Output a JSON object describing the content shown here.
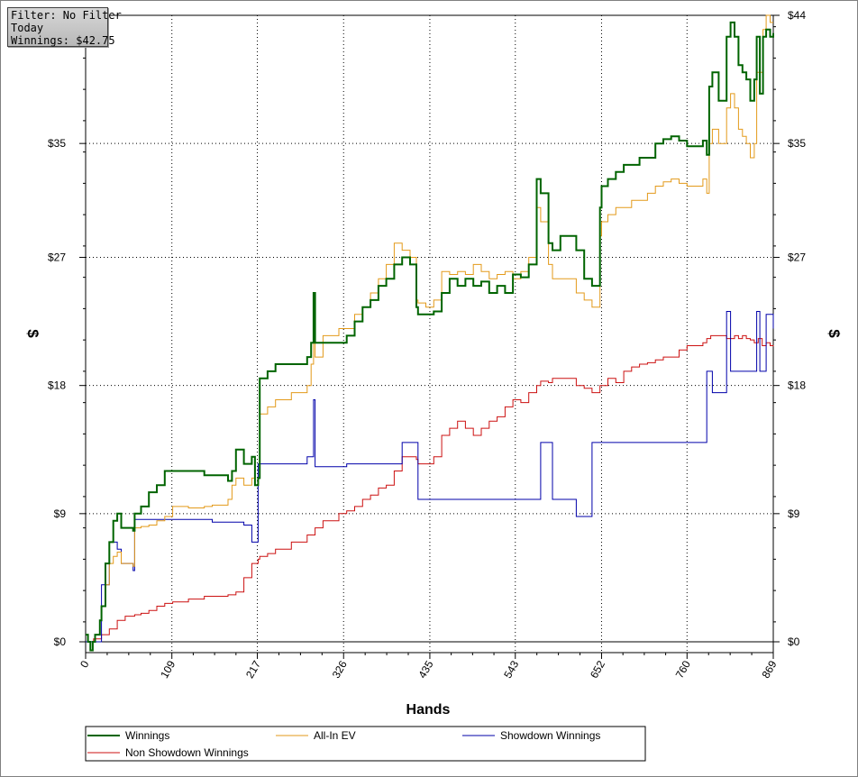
{
  "info_box": {
    "filter": "Filter: No Filter",
    "period": "Today",
    "winnings": "Winnings: $42.75"
  },
  "chart_data": {
    "type": "line",
    "xlabel": "Hands",
    "ylabel": "$",
    "xlim": [
      0,
      869
    ],
    "ylim": [
      -0.8,
      44
    ],
    "x_ticks": [
      0,
      109,
      217,
      326,
      435,
      543,
      652,
      760,
      869
    ],
    "y_ticks": [
      0,
      9,
      18,
      27,
      35,
      44
    ],
    "y_tick_labels": [
      "$0",
      "$9",
      "$18",
      "$27",
      "$35",
      "$44"
    ],
    "grid": "dotted",
    "legend_position": "bottom",
    "series": [
      {
        "name": "Winnings",
        "color": "#006400",
        "width": 2,
        "x": [
          0,
          3,
          6,
          9,
          12,
          18,
          20,
          25,
          30,
          35,
          40,
          45,
          60,
          62,
          70,
          80,
          90,
          100,
          110,
          130,
          150,
          160,
          180,
          185,
          190,
          200,
          210,
          214,
          218,
          220,
          230,
          240,
          260,
          280,
          285,
          288,
          290,
          300,
          320,
          330,
          340,
          350,
          360,
          370,
          380,
          390,
          400,
          410,
          418,
          420,
          430,
          440,
          450,
          460,
          470,
          480,
          490,
          500,
          510,
          520,
          530,
          540,
          550,
          560,
          570,
          575,
          585,
          590,
          600,
          620,
          630,
          640,
          650,
          652,
          660,
          670,
          680,
          690,
          700,
          710,
          720,
          730,
          740,
          750,
          760,
          780,
          785,
          788,
          792,
          800,
          810,
          815,
          820,
          825,
          830,
          835,
          840,
          845,
          848,
          852,
          856,
          860,
          865,
          869
        ],
        "y": [
          0.5,
          0,
          -0.6,
          0,
          0.5,
          1.5,
          2.5,
          5.5,
          7,
          8.5,
          9,
          8,
          7.8,
          9,
          9.5,
          10.5,
          11,
          12,
          12,
          12,
          11.7,
          11.7,
          11.3,
          12,
          13.5,
          12.5,
          13,
          11,
          11.5,
          18.5,
          19,
          19.5,
          19.5,
          20,
          21,
          24.5,
          21,
          21,
          21,
          21.5,
          22.5,
          23.5,
          24,
          25,
          25.5,
          26.5,
          27,
          26.5,
          23.5,
          23,
          23,
          23.2,
          24.5,
          25.5,
          25,
          25.5,
          25,
          25.3,
          24.5,
          25,
          24.5,
          25.8,
          25.6,
          26.5,
          32.5,
          31.5,
          28,
          27.5,
          28.5,
          27.5,
          25.5,
          25,
          30.5,
          32,
          32.5,
          33,
          33.5,
          33.5,
          34,
          34,
          35,
          35.3,
          35.5,
          35.2,
          34.8,
          35.2,
          34.2,
          39,
          40,
          38,
          42.5,
          43.5,
          42.5,
          40.5,
          40,
          39.5,
          38,
          39.5,
          42.5,
          38.5,
          42.5,
          43,
          42.5,
          42.75
        ]
      },
      {
        "name": "All-In EV",
        "color": "#e39a1a",
        "width": 1,
        "x": [
          0,
          3,
          6,
          9,
          12,
          18,
          20,
          25,
          30,
          35,
          40,
          45,
          60,
          62,
          70,
          80,
          90,
          100,
          110,
          130,
          150,
          160,
          180,
          185,
          190,
          200,
          210,
          214,
          218,
          220,
          230,
          240,
          260,
          280,
          285,
          288,
          290,
          300,
          320,
          330,
          340,
          350,
          360,
          370,
          380,
          390,
          400,
          410,
          418,
          420,
          430,
          440,
          450,
          460,
          470,
          480,
          490,
          500,
          510,
          520,
          530,
          540,
          550,
          560,
          570,
          575,
          585,
          590,
          600,
          620,
          630,
          640,
          650,
          652,
          660,
          670,
          680,
          690,
          700,
          710,
          720,
          730,
          740,
          750,
          760,
          780,
          785,
          788,
          792,
          800,
          810,
          815,
          820,
          825,
          830,
          835,
          840,
          845,
          848,
          852,
          856,
          860,
          865,
          869
        ],
        "y": [
          0.5,
          0,
          -0.6,
          0,
          0.5,
          1.5,
          2.5,
          4,
          5.5,
          6,
          6.3,
          5.5,
          5.3,
          8,
          8.1,
          8.2,
          8.5,
          8.8,
          9.5,
          9.4,
          9.5,
          9.6,
          10,
          11,
          11.5,
          11,
          11.5,
          11,
          11.5,
          16,
          16.5,
          17,
          17.5,
          18,
          19.5,
          22,
          20,
          21.5,
          22,
          22,
          23,
          23.5,
          24.5,
          25.5,
          26.5,
          28,
          27.5,
          27,
          24,
          23.8,
          23.5,
          24,
          26,
          25.8,
          26,
          25.8,
          26.5,
          26,
          25.5,
          25.8,
          26,
          25.5,
          26,
          27,
          30.5,
          29.5,
          26.5,
          25.5,
          25.5,
          24.5,
          24,
          23.5,
          28.5,
          29.5,
          30,
          30.5,
          30.5,
          31,
          31,
          31.5,
          32,
          32.3,
          32.5,
          32.2,
          32,
          32.5,
          31.5,
          35,
          36,
          35,
          37.5,
          38.5,
          37.5,
          36,
          35.5,
          35,
          34,
          35,
          40,
          40,
          43,
          44,
          43.5,
          43.5
        ]
      },
      {
        "name": "Showdown Winnings",
        "color": "#0000aa",
        "width": 1,
        "x": [
          0,
          10,
          20,
          30,
          40,
          45,
          60,
          62,
          150,
          160,
          200,
          210,
          214,
          218,
          220,
          280,
          285,
          288,
          290,
          330,
          390,
          400,
          410,
          418,
          420,
          560,
          575,
          585,
          590,
          620,
          630,
          640,
          760,
          780,
          785,
          788,
          792,
          800,
          810,
          815,
          845,
          848,
          852,
          856,
          860,
          869
        ],
        "y": [
          0,
          0,
          4,
          7,
          6.5,
          5.5,
          5,
          8.6,
          8.6,
          8.4,
          8.2,
          7,
          7,
          12.5,
          12.5,
          13,
          13,
          17,
          12.3,
          12.5,
          12.5,
          14,
          14,
          14,
          10,
          10,
          14,
          14,
          10,
          8.8,
          8.8,
          14,
          14,
          14,
          19,
          19,
          17.5,
          17.5,
          23.2,
          19,
          19,
          23.2,
          19,
          19,
          23,
          22
        ]
      },
      {
        "name": "Non Showdown Winnings",
        "color": "#cc1111",
        "width": 1,
        "x": [
          0,
          10,
          20,
          30,
          40,
          50,
          62,
          70,
          80,
          90,
          100,
          110,
          130,
          150,
          160,
          180,
          185,
          190,
          200,
          210,
          214,
          218,
          220,
          230,
          240,
          260,
          280,
          290,
          300,
          320,
          330,
          340,
          350,
          360,
          370,
          380,
          390,
          400,
          410,
          418,
          420,
          430,
          440,
          450,
          460,
          470,
          480,
          490,
          500,
          510,
          520,
          530,
          540,
          550,
          560,
          570,
          575,
          585,
          590,
          600,
          620,
          630,
          640,
          650,
          652,
          660,
          670,
          680,
          690,
          700,
          710,
          720,
          730,
          740,
          750,
          760,
          780,
          785,
          790,
          800,
          810,
          820,
          825,
          830,
          835,
          840,
          845,
          850,
          855,
          860,
          865,
          869
        ],
        "y": [
          0,
          0.2,
          0.5,
          0.9,
          1.5,
          1.8,
          1.9,
          2,
          2.2,
          2.5,
          2.7,
          2.8,
          3,
          3.2,
          3.2,
          3.3,
          3.3,
          3.5,
          4.5,
          5.5,
          5.5,
          5.8,
          6,
          6.2,
          6.5,
          7,
          7.5,
          8,
          8.5,
          9,
          9.2,
          9.5,
          10,
          10.3,
          10.8,
          11,
          12,
          13,
          13,
          12.8,
          12.5,
          12.5,
          13,
          14.5,
          15,
          15.5,
          15,
          14.5,
          15,
          15.5,
          15.8,
          16.5,
          17,
          16.8,
          17.5,
          18,
          18.3,
          18.2,
          18.5,
          18.5,
          18,
          17.8,
          17.5,
          18,
          18,
          18.5,
          18.2,
          19,
          19.3,
          19.5,
          19.6,
          19.8,
          20,
          20,
          20.5,
          20.8,
          21,
          21.3,
          21.5,
          21.5,
          21.3,
          21.5,
          21.3,
          21.5,
          21.3,
          21.2,
          21,
          21.3,
          20.8,
          21,
          20.8,
          20.75
        ]
      }
    ]
  }
}
